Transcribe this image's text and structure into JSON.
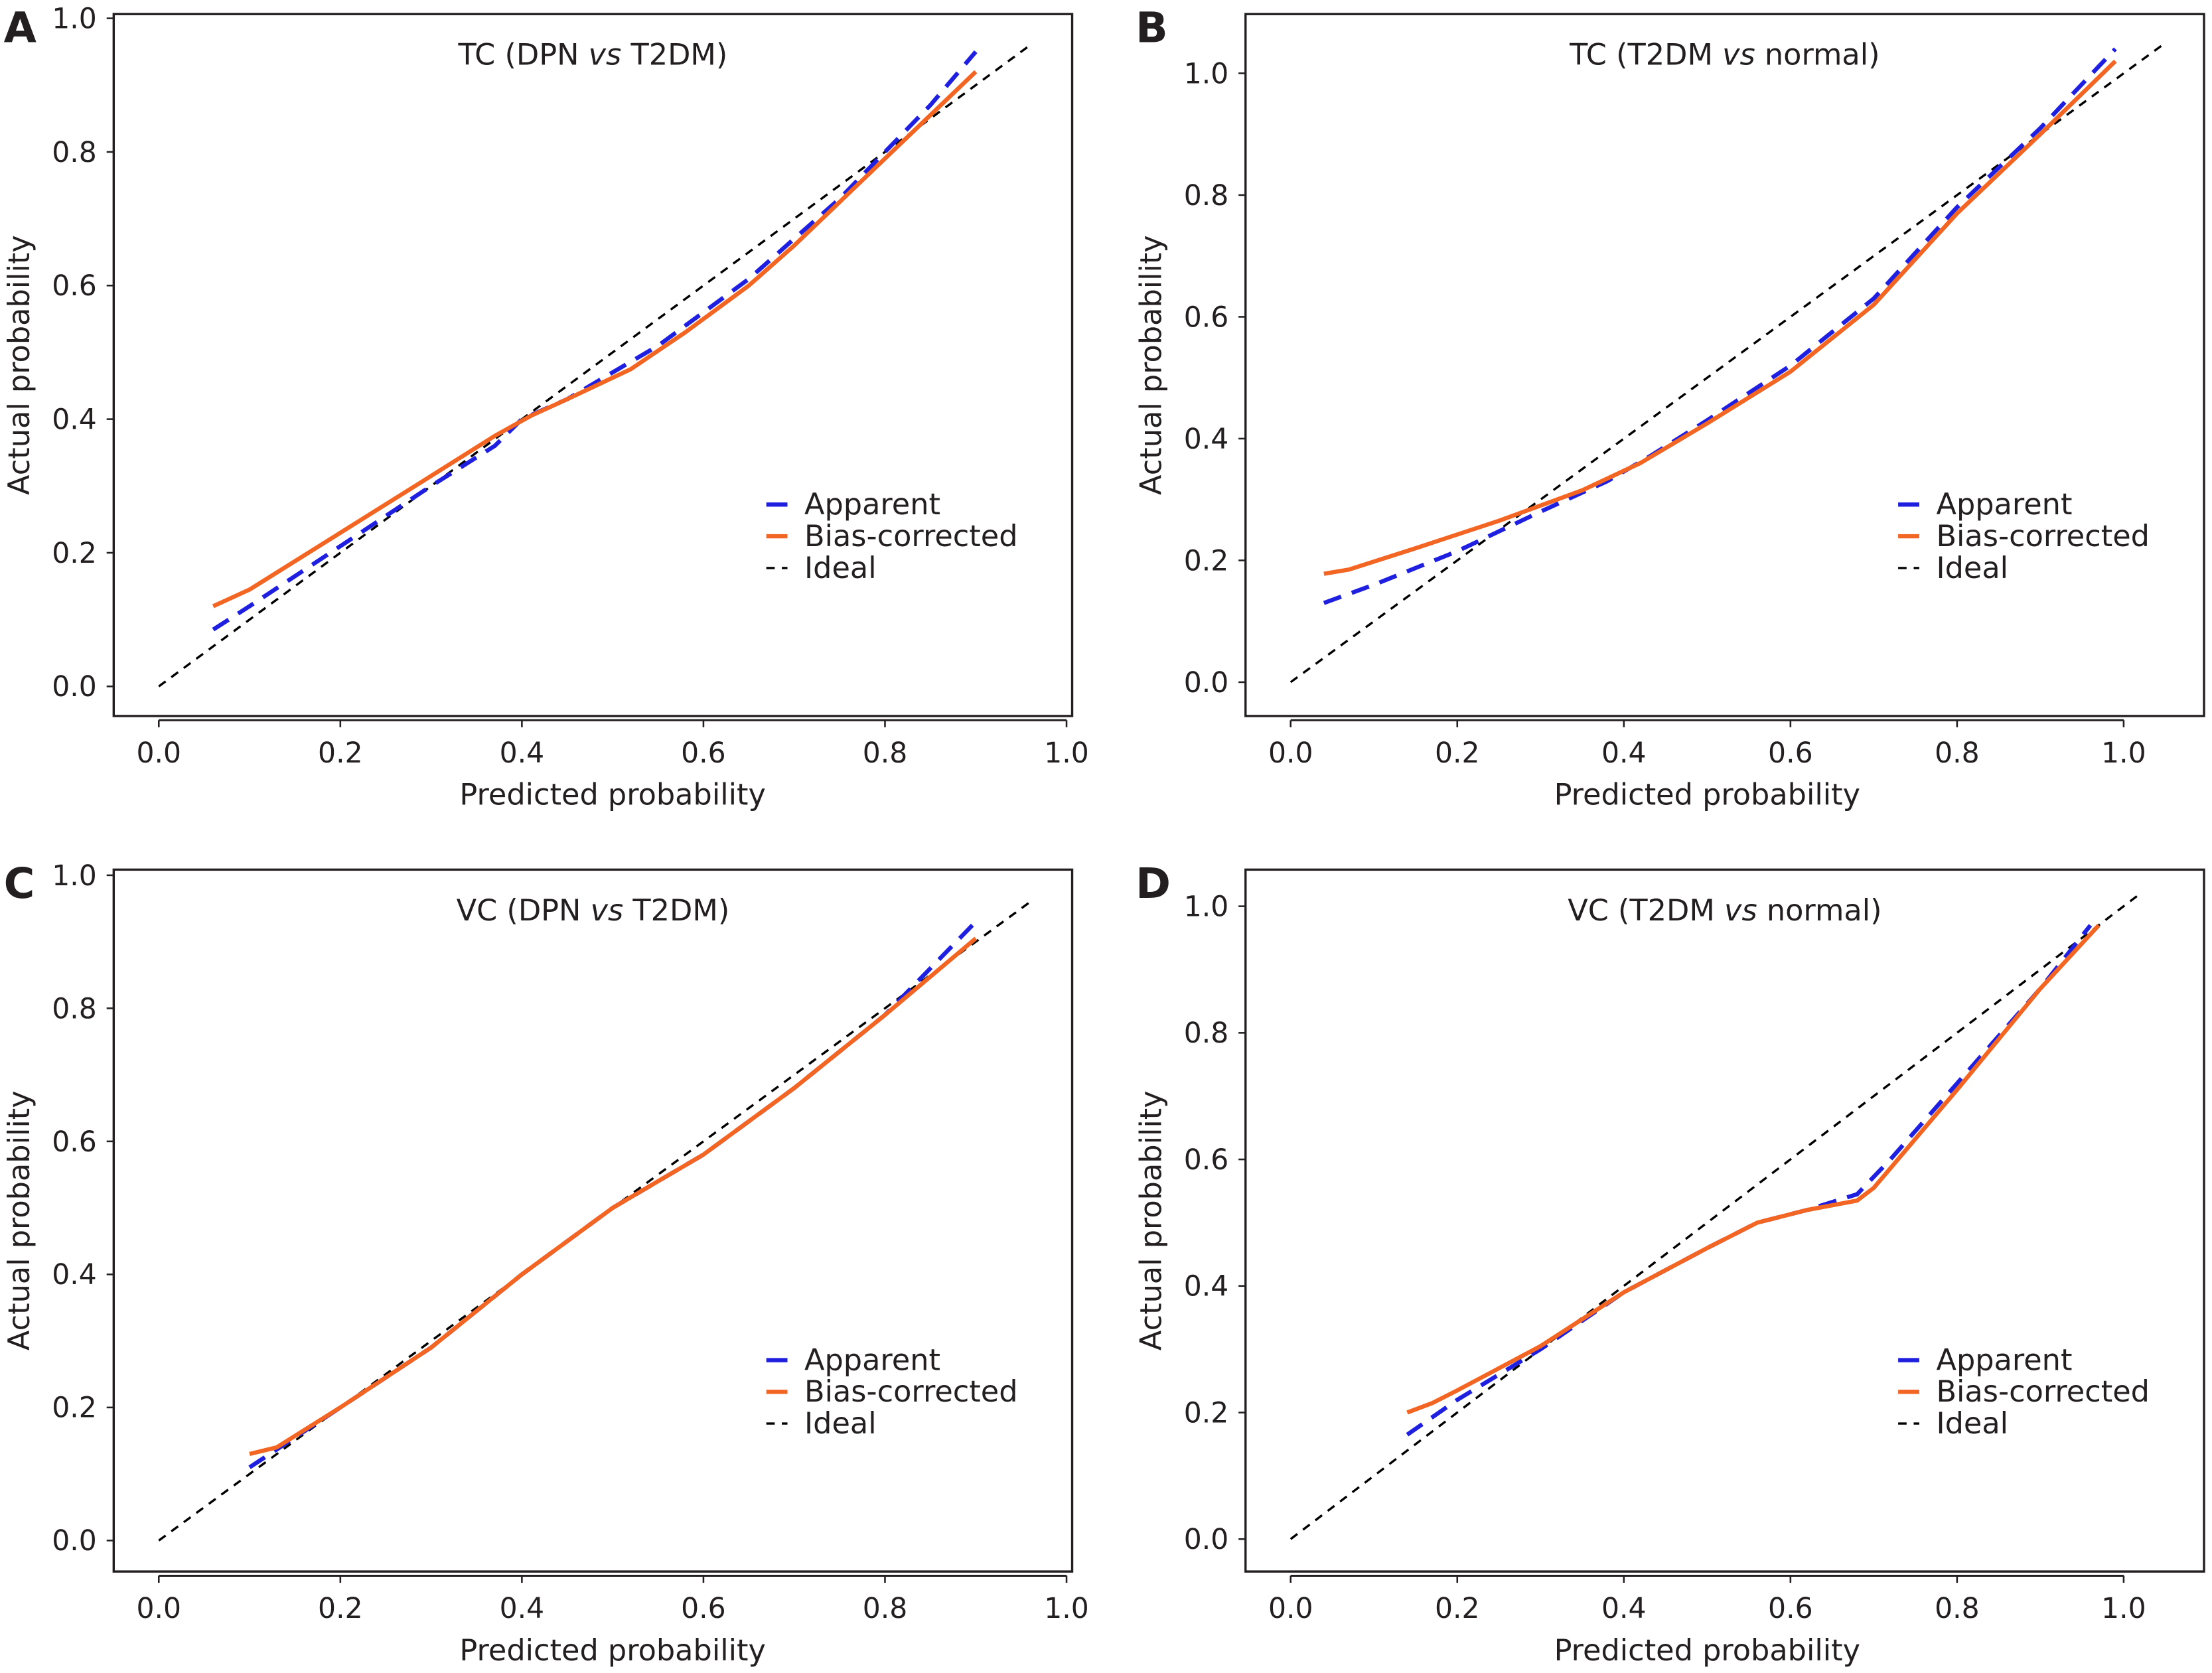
{
  "colors": {
    "apparent": "#1f1fe0",
    "bias_corrected": "#f26522",
    "ideal": "#000000",
    "axis": "#231f20"
  },
  "chart_data": [
    {
      "panel": "A",
      "type": "line",
      "title": {
        "prefix": "TC (DPN ",
        "italic": "vs",
        "suffix": " T2DM)"
      },
      "xlabel": "Predicted probability",
      "ylabel": "Actual probability",
      "xlim": [
        0,
        1
      ],
      "ylim": [
        0,
        1
      ],
      "xticks": [
        "0.0",
        "0.2",
        "0.4",
        "0.6",
        "0.8",
        "1.0"
      ],
      "yticks": [
        "0.0",
        "0.2",
        "0.4",
        "0.6",
        "0.8",
        "1.0"
      ],
      "legend": [
        "Apparent",
        "Bias-corrected",
        "Ideal"
      ],
      "legend_position": "lower-right",
      "series": [
        {
          "name": "Apparent",
          "x": [
            0.06,
            0.1,
            0.2,
            0.3,
            0.37,
            0.4,
            0.45,
            0.5,
            0.55,
            0.6,
            0.65,
            0.7,
            0.75,
            0.8,
            0.85,
            0.9
          ],
          "y": [
            0.085,
            0.12,
            0.21,
            0.3,
            0.36,
            0.4,
            0.43,
            0.47,
            0.51,
            0.56,
            0.61,
            0.67,
            0.73,
            0.8,
            0.87,
            0.95
          ]
        },
        {
          "name": "Bias-corrected",
          "x": [
            0.06,
            0.1,
            0.2,
            0.3,
            0.37,
            0.41,
            0.45,
            0.52,
            0.58,
            0.65,
            0.7,
            0.8,
            0.9
          ],
          "y": [
            0.12,
            0.145,
            0.23,
            0.315,
            0.375,
            0.405,
            0.43,
            0.475,
            0.53,
            0.6,
            0.66,
            0.79,
            0.92
          ]
        },
        {
          "name": "Ideal",
          "x": [
            0,
            0.96
          ],
          "y": [
            0,
            0.96
          ]
        }
      ]
    },
    {
      "panel": "B",
      "type": "line",
      "title": {
        "prefix": "TC (T2DM ",
        "italic": "vs",
        "suffix": " normal)"
      },
      "xlabel": "Predicted probability",
      "ylabel": "Actual probability",
      "xlim": [
        0,
        1
      ],
      "ylim": [
        0,
        1
      ],
      "xticks": [
        "0.0",
        "0.2",
        "0.4",
        "0.6",
        "0.8",
        "1.0"
      ],
      "yticks": [
        "0.0",
        "0.2",
        "0.4",
        "0.6",
        "0.8",
        "1.0"
      ],
      "legend": [
        "Apparent",
        "Bias-corrected",
        "Ideal"
      ],
      "legend_position": "lower-right",
      "series": [
        {
          "name": "Apparent",
          "x": [
            0.04,
            0.1,
            0.2,
            0.3,
            0.38,
            0.43,
            0.5,
            0.6,
            0.7,
            0.8,
            0.9,
            0.99
          ],
          "y": [
            0.13,
            0.16,
            0.215,
            0.28,
            0.33,
            0.37,
            0.43,
            0.52,
            0.63,
            0.78,
            0.91,
            1.04
          ]
        },
        {
          "name": "Bias-corrected",
          "x": [
            0.04,
            0.07,
            0.15,
            0.25,
            0.35,
            0.42,
            0.5,
            0.6,
            0.7,
            0.8,
            0.9,
            0.99
          ],
          "y": [
            0.178,
            0.185,
            0.22,
            0.265,
            0.315,
            0.36,
            0.425,
            0.51,
            0.62,
            0.77,
            0.9,
            1.02
          ]
        },
        {
          "name": "Ideal",
          "x": [
            0,
            1.05
          ],
          "y": [
            0,
            1.05
          ]
        }
      ]
    },
    {
      "panel": "C",
      "type": "line",
      "title": {
        "prefix": "VC (DPN ",
        "italic": "vs",
        "suffix": " T2DM)"
      },
      "xlabel": "Predicted probability",
      "ylabel": "Actual probability",
      "xlim": [
        0,
        1
      ],
      "ylim": [
        0,
        1
      ],
      "xticks": [
        "0.0",
        "0.2",
        "0.4",
        "0.6",
        "0.8",
        "1.0"
      ],
      "yticks": [
        "0.0",
        "0.2",
        "0.4",
        "0.6",
        "0.8",
        "1.0"
      ],
      "legend": [
        "Apparent",
        "Bias-corrected",
        "Ideal"
      ],
      "legend_position": "lower-right",
      "series": [
        {
          "name": "Apparent",
          "x": [
            0.1,
            0.2,
            0.3,
            0.4,
            0.5,
            0.6,
            0.7,
            0.8,
            0.9
          ],
          "y": [
            0.11,
            0.2,
            0.29,
            0.4,
            0.5,
            0.58,
            0.68,
            0.79,
            0.93
          ]
        },
        {
          "name": "Bias-corrected",
          "x": [
            0.1,
            0.13,
            0.2,
            0.3,
            0.4,
            0.5,
            0.6,
            0.7,
            0.8,
            0.9
          ],
          "y": [
            0.13,
            0.14,
            0.2,
            0.29,
            0.4,
            0.5,
            0.58,
            0.68,
            0.79,
            0.905
          ]
        },
        {
          "name": "Ideal",
          "x": [
            0,
            0.96
          ],
          "y": [
            0,
            0.96
          ]
        }
      ]
    },
    {
      "panel": "D",
      "type": "line",
      "title": {
        "prefix": "VC (T2DM ",
        "italic": "vs",
        "suffix": " normal)"
      },
      "xlabel": "Predicted probability",
      "ylabel": "Actual probability",
      "xlim": [
        0,
        1
      ],
      "ylim": [
        0,
        1
      ],
      "xticks": [
        "0.0",
        "0.2",
        "0.4",
        "0.6",
        "0.8",
        "1.0"
      ],
      "yticks": [
        "0.0",
        "0.2",
        "0.4",
        "0.6",
        "0.8",
        "1.0"
      ],
      "legend": [
        "Apparent",
        "Bias-corrected",
        "Ideal"
      ],
      "legend_position": "lower-right",
      "series": [
        {
          "name": "Apparent",
          "x": [
            0.14,
            0.2,
            0.3,
            0.4,
            0.5,
            0.56,
            0.62,
            0.68,
            0.72,
            0.8,
            0.9,
            0.96
          ],
          "y": [
            0.165,
            0.22,
            0.3,
            0.39,
            0.46,
            0.5,
            0.52,
            0.545,
            0.6,
            0.72,
            0.87,
            0.97
          ]
        },
        {
          "name": "Bias-corrected",
          "x": [
            0.14,
            0.17,
            0.2,
            0.3,
            0.4,
            0.5,
            0.56,
            0.62,
            0.68,
            0.7,
            0.8,
            0.9,
            0.97
          ],
          "y": [
            0.2,
            0.215,
            0.235,
            0.305,
            0.39,
            0.46,
            0.5,
            0.52,
            0.535,
            0.555,
            0.71,
            0.87,
            0.97
          ]
        },
        {
          "name": "Ideal",
          "x": [
            0,
            1.02
          ],
          "y": [
            0,
            1.02
          ]
        }
      ]
    }
  ]
}
